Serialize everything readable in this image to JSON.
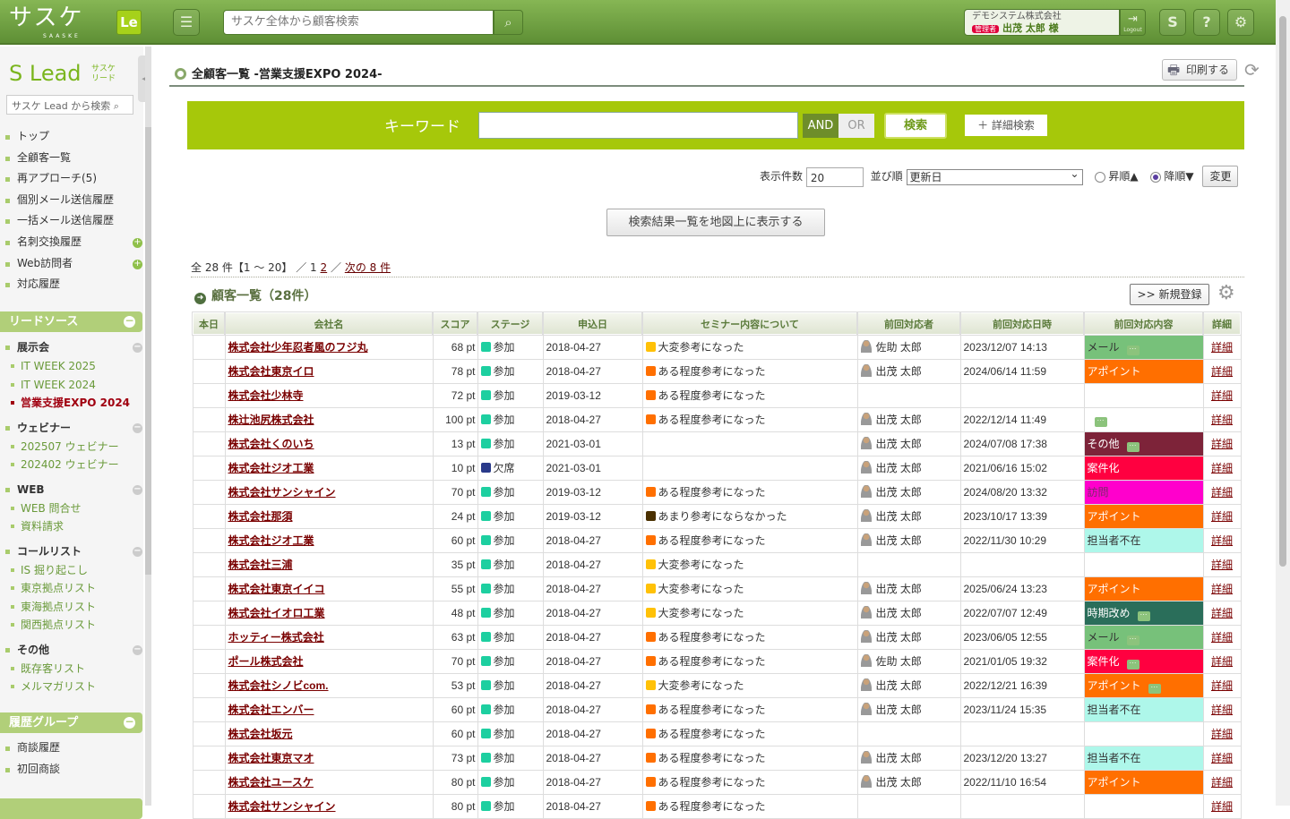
{
  "header": {
    "logo": "サスケ",
    "logo_sub": "SAASKE",
    "app_badge": "Le",
    "search_placeholder": "サスケ全体から顧客検索",
    "company": "デモシステム株式会社",
    "role_badge": "管理者",
    "user": "出茂 太郎 様",
    "logout": "Logout"
  },
  "sidebar": {
    "logo": "Lead",
    "logo_sub1": "サスケ",
    "logo_sub2": "リード",
    "search_placeholder": "サスケ Lead から検索",
    "nav": [
      {
        "label": "トップ"
      },
      {
        "label": "全顧客一覧"
      },
      {
        "label": "再アプローチ(5)"
      },
      {
        "label": "個別メール送信履歴"
      },
      {
        "label": "一括メール送信履歴"
      },
      {
        "label": "名刺交換履歴",
        "plus": true
      },
      {
        "label": "Web訪問者",
        "plus": true
      },
      {
        "label": "対応履歴"
      }
    ],
    "lead_source_title": "リードソース",
    "groups": [
      {
        "label": "展示会",
        "items": [
          "IT WEEK 2025",
          "IT WEEK 2024",
          "営業支援EXPO 2024"
        ],
        "active": 2
      },
      {
        "label": "ウェビナー",
        "items": [
          "202507 ウェビナー",
          "202402 ウェビナー"
        ]
      },
      {
        "label": "WEB",
        "items": [
          "WEB 問合せ",
          "資料請求"
        ]
      },
      {
        "label": "コールリスト",
        "items": [
          "IS 掘り起こし",
          "東京拠点リスト",
          "東海拠点リスト",
          "関西拠点リスト"
        ]
      },
      {
        "label": "その他",
        "items": [
          "既存客リスト",
          "メルマガリスト"
        ]
      }
    ],
    "history_title": "履歴グループ",
    "history": [
      "商談履歴",
      "初回商談"
    ]
  },
  "main": {
    "title": "全顧客一覧 -営業支援EXPO 2024-",
    "print": "印刷する",
    "keyword_label": "キーワード",
    "keyword_value": "",
    "and": "AND",
    "or": "OR",
    "search": "検索",
    "advanced": "＋ 詳細検索",
    "count_label": "表示件数",
    "count_value": "20",
    "sort_label": "並び順",
    "sort_value": "更新日",
    "asc": "昇順▲",
    "desc": "降順▼",
    "sort_order": "desc",
    "change": "変更",
    "map_button": "検索結果一覧を地図上に表示する",
    "pager": {
      "summary": "全 28 件【1 ～ 20】 ／ 1",
      "page2": "2",
      "sep": " ／ ",
      "next": "次の 8 件"
    },
    "list_title": "顧客一覧（28件）",
    "new_button": ">> 新規登録",
    "columns": [
      "本日",
      "会社名",
      "スコア",
      "ステージ",
      "申込日",
      "セミナー内容について",
      "前回対応者",
      "前回対応日時",
      "前回対応内容",
      "詳細"
    ],
    "colors": {
      "参加": "#1dcfa0",
      "欠席": "#2a3a8a",
      "大変参考になった": "#ffc107",
      "ある程度参考になった": "#ff6f00",
      "あまり参考にならなかった": "#4a3000",
      "メール": "#77c17a",
      "アポイント": "#ff6f00",
      "その他": "#7d2339",
      "案件化": "#ff0040",
      "訪問": "#ff00cc",
      "担当者不在": "#aef7ea",
      "時期改め": "#2a6e5a"
    },
    "detail_label": "詳細",
    "rows": [
      [
        "株式会社少年忍者風のフジ丸",
        "68 pt",
        "参加",
        "2018-04-27",
        "大変参考になった",
        "佐助 太郎",
        "2023/12/07 14:13",
        "メール",
        true
      ],
      [
        "株式会社東京イロ",
        "78 pt",
        "参加",
        "2018-04-27",
        "ある程度参考になった",
        "出茂 太郎",
        "2024/06/14 11:59",
        "アポイント",
        false
      ],
      [
        "株式会社少林寺",
        "72 pt",
        "参加",
        "2019-03-12",
        "ある程度参考になった",
        "",
        "",
        "",
        false
      ],
      [
        "株辻池尻株式会社",
        "100 pt",
        "参加",
        "2018-04-27",
        "ある程度参考になった",
        "出茂 太郎",
        "2022/12/14 11:49",
        "",
        true
      ],
      [
        "株式会社くのいち",
        "13 pt",
        "参加",
        "2021-03-01",
        "",
        "出茂 太郎",
        "2024/07/08 17:38",
        "その他",
        true
      ],
      [
        "株式会社ジオ工業",
        "10 pt",
        "欠席",
        "2021-03-01",
        "",
        "出茂 太郎",
        "2021/06/16 15:02",
        "案件化",
        false
      ],
      [
        "株式会社サンシャイン",
        "70 pt",
        "参加",
        "2019-03-12",
        "ある程度参考になった",
        "出茂 太郎",
        "2024/08/20 13:32",
        "訪問",
        false
      ],
      [
        "株式会社那須",
        "24 pt",
        "参加",
        "2019-03-12",
        "あまり参考にならなかった",
        "出茂 太郎",
        "2023/10/17 13:39",
        "アポイント",
        false
      ],
      [
        "株式会社ジオ工業",
        "60 pt",
        "参加",
        "2018-04-27",
        "ある程度参考になった",
        "出茂 太郎",
        "2022/11/30 10:29",
        "担当者不在",
        false
      ],
      [
        "株式会社三浦",
        "35 pt",
        "参加",
        "2018-04-27",
        "大変参考になった",
        "",
        "",
        "",
        false
      ],
      [
        "株式会社東京イイコ",
        "55 pt",
        "参加",
        "2018-04-27",
        "大変参考になった",
        "出茂 太郎",
        "2025/06/24 13:23",
        "アポイント",
        false
      ],
      [
        "株式会社イオロ工業",
        "48 pt",
        "参加",
        "2018-04-27",
        "大変参考になった",
        "出茂 太郎",
        "2022/07/07 12:49",
        "時期改め",
        true
      ],
      [
        "ホッティー株式会社",
        "63 pt",
        "参加",
        "2018-04-27",
        "ある程度参考になった",
        "出茂 太郎",
        "2023/06/05 12:55",
        "メール",
        true
      ],
      [
        "ポール株式会社",
        "70 pt",
        "参加",
        "2018-04-27",
        "ある程度参考になった",
        "佐助 太郎",
        "2021/01/05 19:32",
        "案件化",
        true
      ],
      [
        "株式会社シノビcom.",
        "53 pt",
        "参加",
        "2018-04-27",
        "大変参考になった",
        "出茂 太郎",
        "2022/12/21 16:39",
        "アポイント",
        true
      ],
      [
        "株式会社エンバー",
        "60 pt",
        "参加",
        "2018-04-27",
        "ある程度参考になった",
        "出茂 太郎",
        "2023/11/24 15:35",
        "担当者不在",
        false
      ],
      [
        "株式会社坂元",
        "60 pt",
        "参加",
        "2018-04-27",
        "ある程度参考になった",
        "",
        "",
        "",
        false
      ],
      [
        "株式会社東京マオ",
        "73 pt",
        "参加",
        "2018-04-27",
        "ある程度参考になった",
        "出茂 太郎",
        "2023/12/20 13:27",
        "担当者不在",
        false
      ],
      [
        "株式会社ユースケ",
        "80 pt",
        "参加",
        "2018-04-27",
        "ある程度参考になった",
        "出茂 太郎",
        "2022/11/10 16:54",
        "アポイント",
        false
      ],
      [
        "株式会社サンシャイン",
        "80 pt",
        "参加",
        "2018-04-27",
        "ある程度参考になった",
        "",
        "",
        "",
        false
      ]
    ]
  }
}
